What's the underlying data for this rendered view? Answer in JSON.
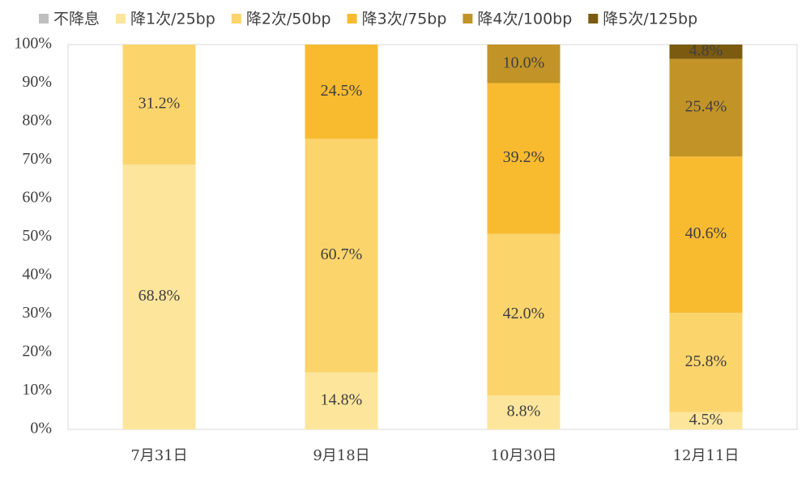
{
  "chart_data": {
    "type": "stacked_bar",
    "categories": [
      "7月31日",
      "9月18日",
      "10月30日",
      "12月11日"
    ],
    "series": [
      {
        "name": "不降息",
        "color": "#bfbfbf",
        "values": [
          0,
          0,
          0,
          0
        ],
        "value_labels": [
          null,
          null,
          null,
          null
        ]
      },
      {
        "name": "降1次/25bp",
        "color": "#fde59c",
        "values": [
          68.8,
          14.8,
          8.8,
          4.5
        ],
        "value_labels": [
          "68.8%",
          "14.8%",
          "8.8%",
          "4.5%"
        ]
      },
      {
        "name": "降2次/50bp",
        "color": "#fbd46c",
        "values": [
          31.2,
          60.7,
          42.0,
          25.8
        ],
        "value_labels": [
          "31.2%",
          "60.7%",
          "42.0%",
          "25.8%"
        ]
      },
      {
        "name": "降3次/75bp",
        "color": "#f8bb30",
        "values": [
          0,
          24.5,
          39.2,
          40.6
        ],
        "value_labels": [
          null,
          "24.5%",
          "39.2%",
          "40.6%"
        ]
      },
      {
        "name": "降4次/100bp",
        "color": "#c29427",
        "values": [
          0,
          0,
          10.0,
          25.4
        ],
        "value_labels": [
          null,
          null,
          "10.0%",
          "25.4%"
        ]
      },
      {
        "name": "降5次/125bp",
        "color": "#7b5b10",
        "values": [
          0,
          0,
          0,
          4.8
        ],
        "value_labels": [
          null,
          null,
          null,
          "4.8%"
        ]
      }
    ],
    "ylim": [
      0,
      100
    ],
    "yticks": [
      {
        "value": 0,
        "label": "0%"
      },
      {
        "value": 10,
        "label": "10%"
      },
      {
        "value": 20,
        "label": "20%"
      },
      {
        "value": 30,
        "label": "30%"
      },
      {
        "value": 40,
        "label": "40%"
      },
      {
        "value": 50,
        "label": "50%"
      },
      {
        "value": 60,
        "label": "60%"
      },
      {
        "value": 70,
        "label": "70%"
      },
      {
        "value": 80,
        "label": "80%"
      },
      {
        "value": 90,
        "label": "90%"
      },
      {
        "value": 100,
        "label": "100%"
      }
    ],
    "grid": false,
    "legend": "top"
  }
}
